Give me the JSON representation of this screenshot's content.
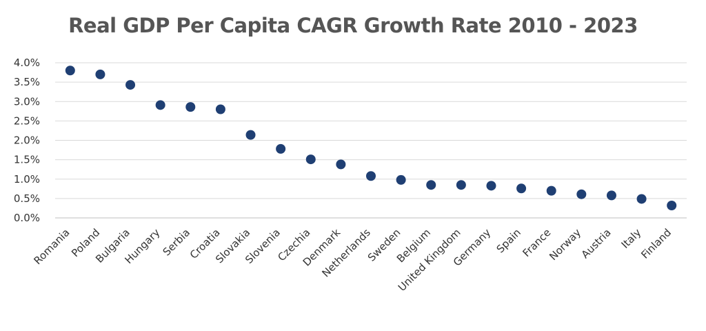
{
  "chart_data": {
    "type": "scatter",
    "title": "Real GDP Per Capita CAGR Growth Rate 2010 - 2023",
    "xlabel": "",
    "ylabel": "",
    "categories": [
      "Romania",
      "Poland",
      "Bulgaria",
      "Hungary",
      "Serbia",
      "Croatia",
      "Slovakia",
      "Slovenia",
      "Czechia",
      "Denmark",
      "Netherlands",
      "Sweden",
      "Belgium",
      "United Kingdom",
      "Germany",
      "Spain",
      "France",
      "Norway",
      "Austria",
      "Italy",
      "Finland"
    ],
    "values": [
      3.8,
      3.7,
      3.43,
      2.91,
      2.86,
      2.8,
      2.14,
      1.78,
      1.51,
      1.38,
      1.08,
      0.98,
      0.85,
      0.85,
      0.83,
      0.76,
      0.7,
      0.61,
      0.58,
      0.49,
      0.32
    ],
    "ylim": [
      0,
      4
    ],
    "yticks": [
      "0.0%",
      "0.5%",
      "1.0%",
      "1.5%",
      "2.0%",
      "2.5%",
      "3.0%",
      "3.5%",
      "4.0%"
    ],
    "grid": true,
    "marker_color": "#1f3f73"
  }
}
